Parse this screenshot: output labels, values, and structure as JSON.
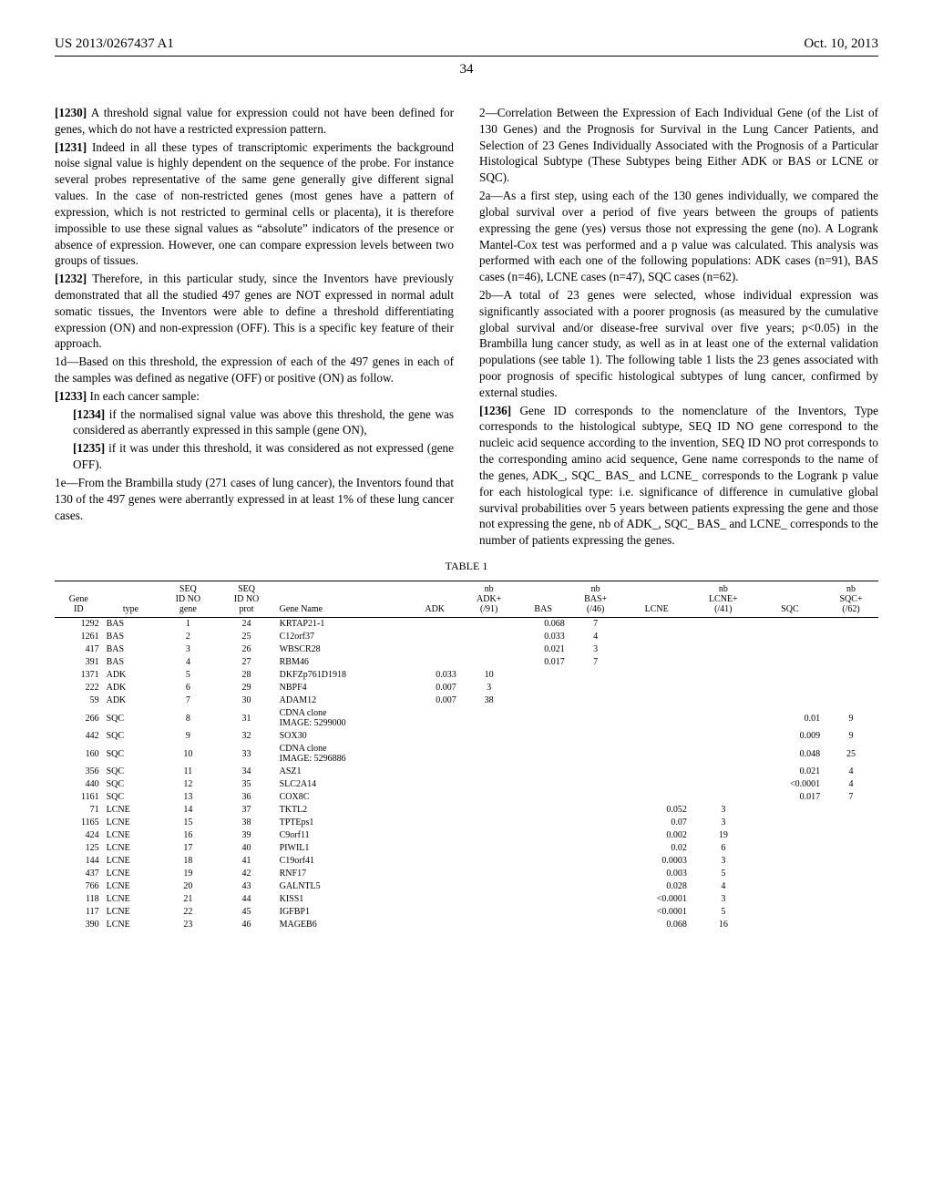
{
  "header": {
    "pub_number": "US 2013/0267437 A1",
    "pub_date": "Oct. 10, 2013"
  },
  "page_number": "34",
  "paragraphs": {
    "p1230": {
      "ref": "[1230]",
      "text": "A threshold signal value for expression could not have been defined for genes, which do not have a restricted expression pattern."
    },
    "p1231": {
      "ref": "[1231]",
      "text": "Indeed in all these types of transcriptomic experiments the background noise signal value is highly dependent on the sequence of the probe. For instance several probes representative of the same gene generally give different signal values. In the case of non-restricted genes (most genes have a pattern of expression, which is not restricted to germinal cells or placenta), it is therefore impossible to use these signal values as “absolute” indicators of the presence or absence of expression. However, one can compare expression levels between two groups of tissues."
    },
    "p1232": {
      "ref": "[1232]",
      "text": "Therefore, in this particular study, since the Inventors have previously demonstrated that all the studied 497 genes are NOT expressed in normal adult somatic tissues, the Inventors were able to define a threshold differentiating expression (ON) and non-expression (OFF). This is a specific key feature of their approach."
    },
    "p1d": {
      "text": "1d—Based on this threshold, the expression of each of the 497 genes in each of the samples was defined as negative (OFF) or positive (ON) as follow."
    },
    "p1233": {
      "ref": "[1233]",
      "text": "In each cancer sample:"
    },
    "p1234": {
      "ref": "[1234]",
      "text": "if the normalised signal value was above this threshold, the gene was considered as aberrantly expressed in this sample (gene ON),"
    },
    "p1235": {
      "ref": "[1235]",
      "text": "if it was under this threshold, it was considered as not expressed (gene OFF)."
    },
    "p1e": {
      "text": "1e—From the Brambilla study (271 cases of lung cancer), the Inventors found that 130 of the 497 genes were aberrantly expressed in at least 1% of these lung cancer cases."
    },
    "p2": {
      "text": "2—Correlation Between the Expression of Each Individual Gene (of the List of 130 Genes) and the Prognosis for Survival in the Lung Cancer Patients, and Selection of 23 Genes Individually Associated with the Prognosis of a Particular Histological Subtype (These Subtypes being Either ADK or BAS or LCNE or SQC)."
    },
    "p2a": {
      "text": "2a—As a first step, using each of the 130 genes individually, we compared the global survival over a period of five years between the groups of patients expressing the gene (yes) versus those not expressing the gene (no). A Logrank Mantel-Cox test was performed and a p value was calculated. This analysis was performed with each one of the following populations: ADK cases (n=91), BAS cases (n=46), LCNE cases (n=47), SQC cases (n=62)."
    },
    "p2b": {
      "text": "2b—A total of 23 genes were selected, whose individual expression was significantly associated with a poorer prognosis (as measured by the cumulative global survival and/or disease-free survival over five years; p<0.05) in the Brambilla lung cancer study, as well as in at least one of the external validation populations (see table 1). The following table 1 lists the 23 genes associated with poor prognosis of specific histological subtypes of lung cancer, confirmed by external studies."
    },
    "p1236": {
      "ref": "[1236]",
      "text": "Gene ID corresponds to the nomenclature of the Inventors, Type corresponds to the histological subtype, SEQ ID NO gene correspond to the nucleic acid sequence according to the invention, SEQ ID NO prot corresponds to the corresponding amino acid sequence, Gene name corresponds to the name of the genes, ADK_, SQC_ BAS_ and LCNE_ corresponds to the Logrank p value for each histological type: i.e. significance of difference in cumulative global survival probabilities over 5 years between patients expressing the gene and those not expressing the gene, nb of ADK_, SQC_ BAS_ and LCNE_ corresponds to the number of patients expressing the genes."
    }
  },
  "table": {
    "caption": "TABLE 1",
    "headers": [
      "Gene ID",
      "type",
      "SEQ ID NO gene",
      "SEQ ID NO prot",
      "Gene Name",
      "ADK",
      "nb ADK+ (/91)",
      "BAS",
      "nb BAS+ (/46)",
      "LCNE",
      "nb LCNE+ (/41)",
      "SQC",
      "nb SQC+ (/62)"
    ],
    "rows": [
      {
        "id": "1292",
        "type": "BAS",
        "seqg": "1",
        "seqp": "24",
        "name": "KRTAP21-1",
        "adk": "",
        "nadk": "",
        "bas": "0.068",
        "nbas": "7",
        "lcne": "",
        "nlcne": "",
        "sqc": "",
        "nsqc": ""
      },
      {
        "id": "1261",
        "type": "BAS",
        "seqg": "2",
        "seqp": "25",
        "name": "C12orf37",
        "adk": "",
        "nadk": "",
        "bas": "0.033",
        "nbas": "4",
        "lcne": "",
        "nlcne": "",
        "sqc": "",
        "nsqc": ""
      },
      {
        "id": "417",
        "type": "BAS",
        "seqg": "3",
        "seqp": "26",
        "name": "WBSCR28",
        "adk": "",
        "nadk": "",
        "bas": "0.021",
        "nbas": "3",
        "lcne": "",
        "nlcne": "",
        "sqc": "",
        "nsqc": ""
      },
      {
        "id": "391",
        "type": "BAS",
        "seqg": "4",
        "seqp": "27",
        "name": "RBM46",
        "adk": "",
        "nadk": "",
        "bas": "0.017",
        "nbas": "7",
        "lcne": "",
        "nlcne": "",
        "sqc": "",
        "nsqc": ""
      },
      {
        "id": "1371",
        "type": "ADK",
        "seqg": "5",
        "seqp": "28",
        "name": "DKFZp761D1918",
        "adk": "0.033",
        "nadk": "10",
        "bas": "",
        "nbas": "",
        "lcne": "",
        "nlcne": "",
        "sqc": "",
        "nsqc": ""
      },
      {
        "id": "222",
        "type": "ADK",
        "seqg": "6",
        "seqp": "29",
        "name": "NBPF4",
        "adk": "0.007",
        "nadk": "3",
        "bas": "",
        "nbas": "",
        "lcne": "",
        "nlcne": "",
        "sqc": "",
        "nsqc": ""
      },
      {
        "id": "59",
        "type": "ADK",
        "seqg": "7",
        "seqp": "30",
        "name": "ADAM12",
        "adk": "0.007",
        "nadk": "38",
        "bas": "",
        "nbas": "",
        "lcne": "",
        "nlcne": "",
        "sqc": "",
        "nsqc": ""
      },
      {
        "id": "266",
        "type": "SQC",
        "seqg": "8",
        "seqp": "31",
        "name": "CDNA clone IMAGE: 5299000",
        "adk": "",
        "nadk": "",
        "bas": "",
        "nbas": "",
        "lcne": "",
        "nlcne": "",
        "sqc": "0.01",
        "nsqc": "9"
      },
      {
        "id": "442",
        "type": "SQC",
        "seqg": "9",
        "seqp": "32",
        "name": "SOX30",
        "adk": "",
        "nadk": "",
        "bas": "",
        "nbas": "",
        "lcne": "",
        "nlcne": "",
        "sqc": "0.009",
        "nsqc": "9"
      },
      {
        "id": "160",
        "type": "SQC",
        "seqg": "10",
        "seqp": "33",
        "name": "CDNA clone IMAGE: 5296886",
        "adk": "",
        "nadk": "",
        "bas": "",
        "nbas": "",
        "lcne": "",
        "nlcne": "",
        "sqc": "0.048",
        "nsqc": "25"
      },
      {
        "id": "356",
        "type": "SQC",
        "seqg": "11",
        "seqp": "34",
        "name": "ASZ1",
        "adk": "",
        "nadk": "",
        "bas": "",
        "nbas": "",
        "lcne": "",
        "nlcne": "",
        "sqc": "0.021",
        "nsqc": "4"
      },
      {
        "id": "440",
        "type": "SQC",
        "seqg": "12",
        "seqp": "35",
        "name": "SLC2A14",
        "adk": "",
        "nadk": "",
        "bas": "",
        "nbas": "",
        "lcne": "",
        "nlcne": "",
        "sqc": "<0.0001",
        "nsqc": "4"
      },
      {
        "id": "1161",
        "type": "SQC",
        "seqg": "13",
        "seqp": "36",
        "name": "COX8C",
        "adk": "",
        "nadk": "",
        "bas": "",
        "nbas": "",
        "lcne": "",
        "nlcne": "",
        "sqc": "0.017",
        "nsqc": "7"
      },
      {
        "id": "71",
        "type": "LCNE",
        "seqg": "14",
        "seqp": "37",
        "name": "TKTL2",
        "adk": "",
        "nadk": "",
        "bas": "",
        "nbas": "",
        "lcne": "0.052",
        "nlcne": "3",
        "sqc": "",
        "nsqc": ""
      },
      {
        "id": "1165",
        "type": "LCNE",
        "seqg": "15",
        "seqp": "38",
        "name": "TPTEps1",
        "adk": "",
        "nadk": "",
        "bas": "",
        "nbas": "",
        "lcne": "0.07",
        "nlcne": "3",
        "sqc": "",
        "nsqc": ""
      },
      {
        "id": "424",
        "type": "LCNE",
        "seqg": "16",
        "seqp": "39",
        "name": "C9orf11",
        "adk": "",
        "nadk": "",
        "bas": "",
        "nbas": "",
        "lcne": "0.002",
        "nlcne": "19",
        "sqc": "",
        "nsqc": ""
      },
      {
        "id": "125",
        "type": "LCNE",
        "seqg": "17",
        "seqp": "40",
        "name": "PIWIL1",
        "adk": "",
        "nadk": "",
        "bas": "",
        "nbas": "",
        "lcne": "0.02",
        "nlcne": "6",
        "sqc": "",
        "nsqc": ""
      },
      {
        "id": "144",
        "type": "LCNE",
        "seqg": "18",
        "seqp": "41",
        "name": "C19orf41",
        "adk": "",
        "nadk": "",
        "bas": "",
        "nbas": "",
        "lcne": "0.0003",
        "nlcne": "3",
        "sqc": "",
        "nsqc": ""
      },
      {
        "id": "437",
        "type": "LCNE",
        "seqg": "19",
        "seqp": "42",
        "name": "RNF17",
        "adk": "",
        "nadk": "",
        "bas": "",
        "nbas": "",
        "lcne": "0.003",
        "nlcne": "5",
        "sqc": "",
        "nsqc": ""
      },
      {
        "id": "766",
        "type": "LCNE",
        "seqg": "20",
        "seqp": "43",
        "name": "GALNTL5",
        "adk": "",
        "nadk": "",
        "bas": "",
        "nbas": "",
        "lcne": "0.028",
        "nlcne": "4",
        "sqc": "",
        "nsqc": ""
      },
      {
        "id": "118",
        "type": "LCNE",
        "seqg": "21",
        "seqp": "44",
        "name": "KISS1",
        "adk": "",
        "nadk": "",
        "bas": "",
        "nbas": "",
        "lcne": "<0.0001",
        "nlcne": "3",
        "sqc": "",
        "nsqc": ""
      },
      {
        "id": "117",
        "type": "LCNE",
        "seqg": "22",
        "seqp": "45",
        "name": "IGFBP1",
        "adk": "",
        "nadk": "",
        "bas": "",
        "nbas": "",
        "lcne": "<0.0001",
        "nlcne": "5",
        "sqc": "",
        "nsqc": ""
      },
      {
        "id": "390",
        "type": "LCNE",
        "seqg": "23",
        "seqp": "46",
        "name": "MAGEB6",
        "adk": "",
        "nadk": "",
        "bas": "",
        "nbas": "",
        "lcne": "0.068",
        "nlcne": "16",
        "sqc": "",
        "nsqc": ""
      }
    ]
  }
}
